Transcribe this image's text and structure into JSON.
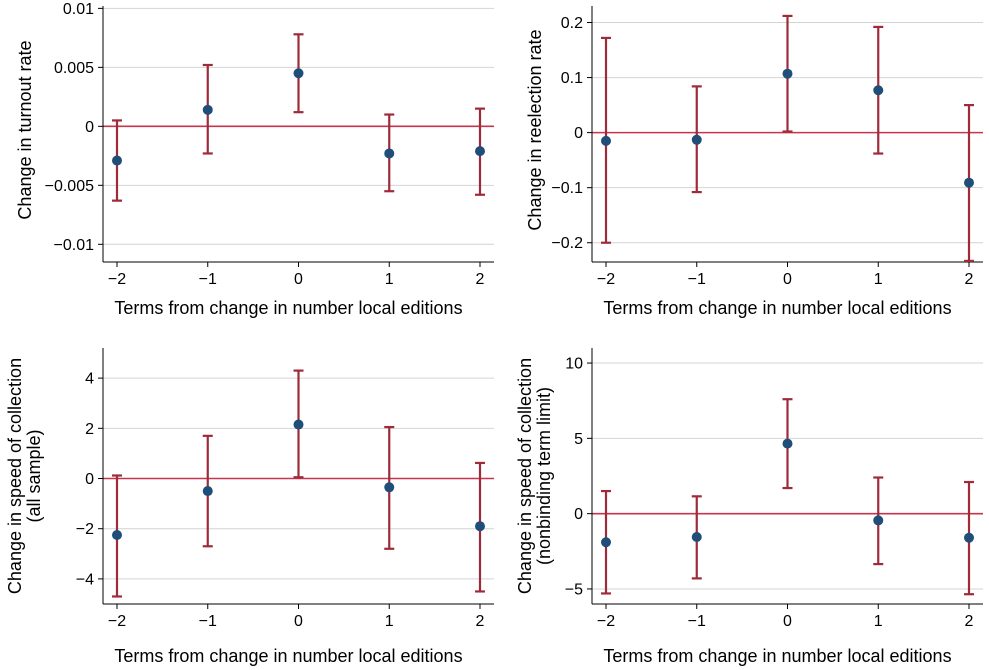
{
  "colors": {
    "point": "#1f4e79",
    "errorbar": "#9e2b3a",
    "zeroline": "#c8334e",
    "grid": "#d4d4d4",
    "axis": "#000000"
  },
  "chart_data": [
    {
      "type": "scatter",
      "subtype": "coefficient plot with error bars",
      "xlabel": "Terms from change in number local editions",
      "ylabel": [
        "Change in turnout rate"
      ],
      "x_ticks": [
        "−2",
        "−1",
        "0",
        "1",
        "2"
      ],
      "xlim": [
        -2,
        2
      ],
      "y_ticks": [
        "0.01",
        "0.005",
        "0",
        "−0.005",
        "−0.01"
      ],
      "y_tick_values": [
        0.01,
        0.005,
        0,
        -0.005,
        -0.01
      ],
      "ylim": [
        -0.0115,
        0.0102
      ],
      "grid": true,
      "reference_line_y": 0,
      "points": [
        {
          "x": -2,
          "y": -0.0029,
          "lo": -0.0063,
          "hi": 0.0005
        },
        {
          "x": -1,
          "y": 0.0014,
          "lo": -0.0023,
          "hi": 0.0052
        },
        {
          "x": 0,
          "y": 0.0045,
          "lo": 0.0012,
          "hi": 0.0078
        },
        {
          "x": 1,
          "y": -0.0023,
          "lo": -0.0055,
          "hi": 0.001
        },
        {
          "x": 2,
          "y": -0.0021,
          "lo": -0.0058,
          "hi": 0.0015
        }
      ]
    },
    {
      "type": "scatter",
      "subtype": "coefficient plot with error bars",
      "xlabel": "Terms from change in number local editions",
      "ylabel": [
        "Change in reelection rate"
      ],
      "x_ticks": [
        "−2",
        "−1",
        "0",
        "1",
        "2"
      ],
      "xlim": [
        -2,
        2
      ],
      "y_ticks": [
        "0.2",
        "0.1",
        "0",
        "−0.1",
        "−0.2"
      ],
      "y_tick_values": [
        0.2,
        0.1,
        0,
        -0.1,
        -0.2
      ],
      "ylim": [
        -0.235,
        0.23
      ],
      "grid": true,
      "reference_line_y": 0,
      "points": [
        {
          "x": -2,
          "y": -0.015,
          "lo": -0.2,
          "hi": 0.172
        },
        {
          "x": -1,
          "y": -0.013,
          "lo": -0.108,
          "hi": 0.084
        },
        {
          "x": 0,
          "y": 0.107,
          "lo": 0.002,
          "hi": 0.212
        },
        {
          "x": 1,
          "y": 0.077,
          "lo": -0.038,
          "hi": 0.192
        },
        {
          "x": 2,
          "y": -0.091,
          "lo": -0.233,
          "hi": 0.05
        }
      ]
    },
    {
      "type": "scatter",
      "subtype": "coefficient plot with error bars",
      "xlabel": "Terms from change in number local editions",
      "ylabel": [
        "Change in speed of collection",
        "(all sample)"
      ],
      "x_ticks": [
        "−2",
        "−1",
        "0",
        "1",
        "2"
      ],
      "xlim": [
        -2,
        2
      ],
      "y_ticks": [
        "4",
        "2",
        "0",
        "−2",
        "−4"
      ],
      "y_tick_values": [
        4,
        2,
        0,
        -2,
        -4
      ],
      "ylim": [
        -5.0,
        5.2
      ],
      "grid": true,
      "reference_line_y": 0,
      "points": [
        {
          "x": -2,
          "y": -2.25,
          "lo": -4.7,
          "hi": 0.12
        },
        {
          "x": -1,
          "y": -0.5,
          "lo": -2.7,
          "hi": 1.7
        },
        {
          "x": 0,
          "y": 2.15,
          "lo": 0.05,
          "hi": 4.3
        },
        {
          "x": 1,
          "y": -0.35,
          "lo": -2.8,
          "hi": 2.05
        },
        {
          "x": 2,
          "y": -1.9,
          "lo": -4.5,
          "hi": 0.62
        }
      ]
    },
    {
      "type": "scatter",
      "subtype": "coefficient plot with error bars",
      "xlabel": "Terms from change in number local editions",
      "ylabel": [
        "Change in speed of collection",
        "(nonbinding term limit)"
      ],
      "x_ticks": [
        "−2",
        "−1",
        "0",
        "1",
        "2"
      ],
      "xlim": [
        -2,
        2
      ],
      "y_ticks": [
        "10",
        "5",
        "0",
        "−5"
      ],
      "y_tick_values": [
        10,
        5,
        0,
        -5
      ],
      "ylim": [
        -6.0,
        11.0
      ],
      "grid": true,
      "reference_line_y": 0,
      "points": [
        {
          "x": -2,
          "y": -1.9,
          "lo": -5.3,
          "hi": 1.5
        },
        {
          "x": -1,
          "y": -1.55,
          "lo": -4.3,
          "hi": 1.15
        },
        {
          "x": 0,
          "y": 4.65,
          "lo": 1.7,
          "hi": 7.6
        },
        {
          "x": 1,
          "y": -0.45,
          "lo": -3.35,
          "hi": 2.4
        },
        {
          "x": 2,
          "y": -1.6,
          "lo": -5.35,
          "hi": 2.1
        }
      ]
    }
  ]
}
